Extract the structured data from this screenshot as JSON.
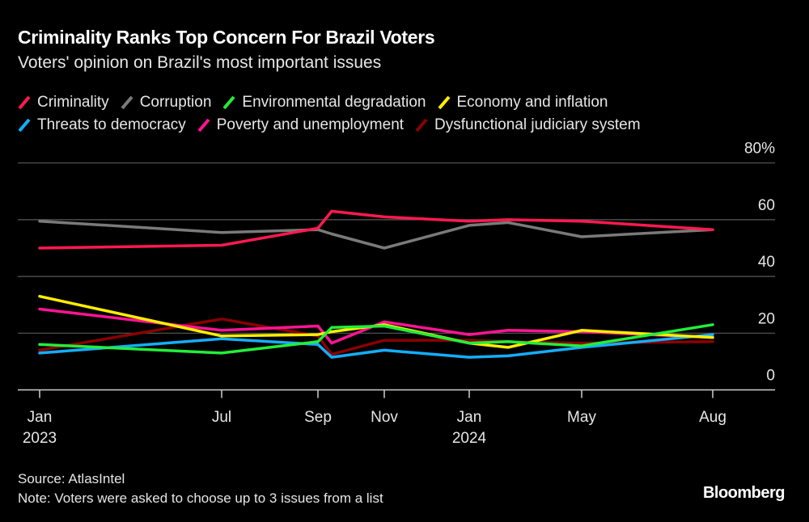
{
  "title": "Criminality Ranks Top Concern For Brazil Voters",
  "subtitle": "Voters' opinion on Brazil's most important issues",
  "source": "Source: AtlasIntel",
  "note": "Note: Voters were asked to choose up to 3 issues from a list",
  "logo": "Bloomberg",
  "chart_data": {
    "type": "line",
    "title": "Criminality Ranks Top Concern For Brazil Voters",
    "subtitle": "Voters' opinion on Brazil's most important issues",
    "x": [
      "2023-01",
      "2023-07",
      "2023-09",
      "2023-09-late",
      "2023-11",
      "2024-01",
      "2024-03",
      "2024-05",
      "2024-08"
    ],
    "x_tick_labels": [
      {
        "month": "Jan",
        "year": "2023"
      },
      {
        "month": "Jul",
        "year": ""
      },
      {
        "month": "Sep",
        "year": ""
      },
      {
        "month": "Nov",
        "year": ""
      },
      {
        "month": "Jan",
        "year": "2024"
      },
      {
        "month": "May",
        "year": ""
      },
      {
        "month": "Aug",
        "year": ""
      }
    ],
    "y_ticks": [
      "80%",
      "60",
      "40",
      "20",
      "0"
    ],
    "ylim": [
      0,
      80
    ],
    "grid": true,
    "legend_placement": "top",
    "series": [
      {
        "name": "Criminality",
        "color": "#ff1a4f",
        "values": [
          50,
          51,
          57,
          63,
          61,
          59.5,
          60,
          59.5,
          56.5
        ]
      },
      {
        "name": "Corruption",
        "color": "#7a7a7a",
        "values": [
          59.5,
          55.5,
          56.5,
          55,
          50,
          58,
          59,
          54,
          56.5
        ]
      },
      {
        "name": "Environmental degradation",
        "color": "#22ee3a",
        "values": [
          16,
          13,
          17,
          22,
          22.5,
          16.5,
          17,
          15.5,
          23
        ]
      },
      {
        "name": "Economy and inflation",
        "color": "#ffee00",
        "values": [
          33,
          19,
          19.5,
          20.5,
          23,
          16.5,
          15,
          21,
          18.5
        ]
      },
      {
        "name": "Threats to democracy",
        "color": "#14aefc",
        "values": [
          13,
          18,
          16,
          11.5,
          14,
          11.5,
          12,
          15,
          19.5
        ]
      },
      {
        "name": "Poverty and unemployment",
        "color": "#ff1493",
        "values": [
          28.5,
          21,
          22.5,
          16.5,
          24,
          19.5,
          21,
          20.5,
          18.5
        ]
      },
      {
        "name": "Dysfunctional judiciary system",
        "color": "#8b0000",
        "values": [
          14,
          25,
          19,
          12.5,
          17.5,
          17.5,
          17,
          16.5,
          17
        ]
      }
    ]
  }
}
